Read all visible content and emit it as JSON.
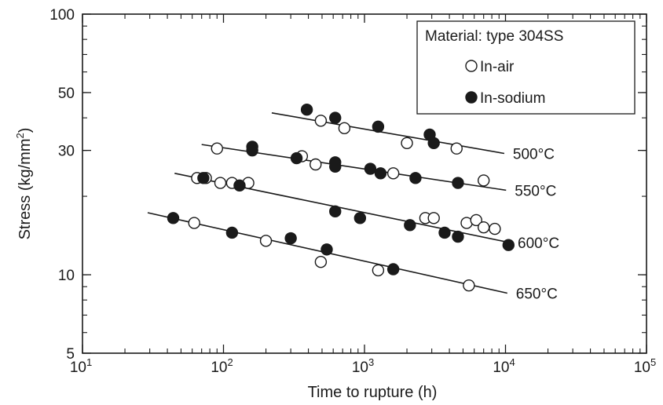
{
  "chart_data": {
    "type": "scatter",
    "x_scale": "log",
    "y_scale": "log",
    "xlim": [
      10,
      100000
    ],
    "ylim": [
      5,
      100
    ],
    "x_ticks": [
      10,
      100,
      1000,
      10000,
      100000
    ],
    "x_tick_labels": [
      {
        "base": "10",
        "exp": "1"
      },
      {
        "base": "10",
        "exp": "2"
      },
      {
        "base": "10",
        "exp": "3"
      },
      {
        "base": "10",
        "exp": "4"
      },
      {
        "base": "10",
        "exp": "5"
      }
    ],
    "y_ticks": [
      5,
      10,
      30,
      50,
      100
    ],
    "y_tick_labels": [
      "5",
      "10",
      "30",
      "50",
      "100"
    ],
    "xlabel": "Time to rupture (h)",
    "ylabel": {
      "text": "Stress (kg/mm",
      "sup": "2",
      "tail": ")"
    },
    "grid": false,
    "legend": {
      "placement": "top-right",
      "title": "Material: type 304SS",
      "entries": [
        {
          "label": "In-air",
          "marker": "open-circle"
        },
        {
          "label": "In-sodium",
          "marker": "filled-circle"
        }
      ]
    },
    "series": [
      {
        "name": "In-air",
        "marker": "open-circle",
        "points": [
          [
            490,
            39
          ],
          [
            720,
            36.5
          ],
          [
            2000,
            32
          ],
          [
            4500,
            30.5
          ],
          [
            90,
            30.5
          ],
          [
            360,
            28.5
          ],
          [
            450,
            26.5
          ],
          [
            1600,
            24.5
          ],
          [
            7000,
            23
          ],
          [
            65,
            23.5
          ],
          [
            75,
            23.5
          ],
          [
            95,
            22.5
          ],
          [
            115,
            22.5
          ],
          [
            150,
            22.5
          ],
          [
            2700,
            16.5
          ],
          [
            3100,
            16.5
          ],
          [
            5300,
            15.8
          ],
          [
            6200,
            16.2
          ],
          [
            7000,
            15.2
          ],
          [
            8400,
            15
          ],
          [
            62,
            15.8
          ],
          [
            200,
            13.5
          ],
          [
            490,
            11.2
          ],
          [
            1250,
            10.4
          ],
          [
            5500,
            9.1
          ]
        ]
      },
      {
        "name": "In-sodium",
        "marker": "filled-circle",
        "points": [
          [
            390,
            43
          ],
          [
            620,
            40
          ],
          [
            1250,
            37
          ],
          [
            2900,
            34.5
          ],
          [
            3100,
            32
          ],
          [
            160,
            31
          ],
          [
            160,
            30
          ],
          [
            330,
            28
          ],
          [
            620,
            27
          ],
          [
            620,
            26
          ],
          [
            1100,
            25.5
          ],
          [
            1300,
            24.5
          ],
          [
            2300,
            23.5
          ],
          [
            4600,
            22.5
          ],
          [
            72,
            23.5
          ],
          [
            130,
            22
          ],
          [
            620,
            17.5
          ],
          [
            930,
            16.5
          ],
          [
            2100,
            15.5
          ],
          [
            3700,
            14.5
          ],
          [
            4600,
            14
          ],
          [
            10500,
            13
          ],
          [
            44,
            16.5
          ],
          [
            115,
            14.5
          ],
          [
            300,
            13.8
          ],
          [
            540,
            12.5
          ],
          [
            1600,
            10.5
          ]
        ]
      }
    ],
    "fit_lines": [
      {
        "label": "500°C",
        "start": [
          220,
          41.8
        ],
        "end": [
          9800,
          29.2
        ]
      },
      {
        "label": "550°C",
        "start": [
          70,
          31.6
        ],
        "end": [
          10100,
          21.1
        ]
      },
      {
        "label": "600°C",
        "start": [
          45,
          24.5
        ],
        "end": [
          10600,
          13.3
        ]
      },
      {
        "label": "650°C",
        "start": [
          29,
          17.3
        ],
        "end": [
          10300,
          8.5
        ]
      }
    ]
  },
  "colors": {
    "ink": "#1a1a1a",
    "background": "#ffffff"
  }
}
